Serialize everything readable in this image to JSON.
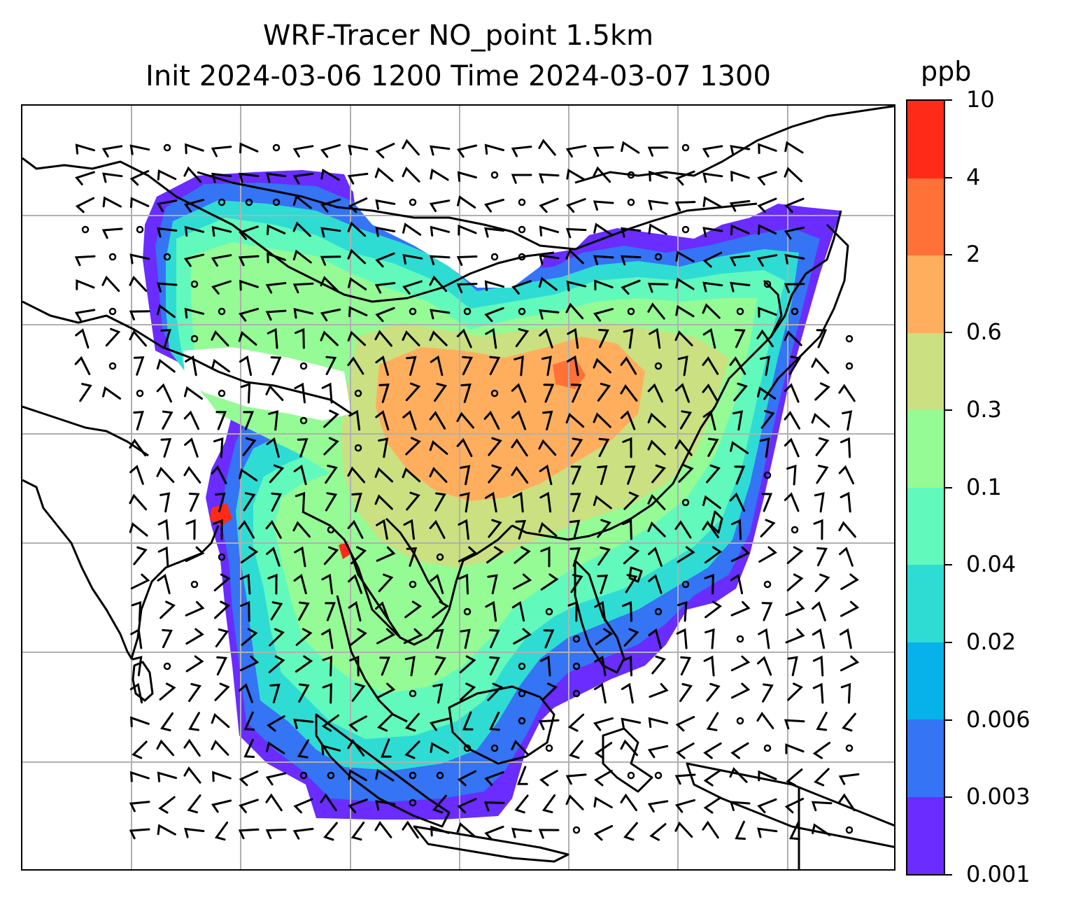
{
  "title": {
    "line1": "WRF-Tracer NO_point 1.5km",
    "line2": "Init 2024-03-06 1200 Time 2024-03-07 1300"
  },
  "colorbar": {
    "unit": "ppb",
    "levels": [
      "0.001",
      "0.003",
      "0.006",
      "0.02",
      "0.04",
      "0.1",
      "0.3",
      "0.6",
      "2",
      "4",
      "10"
    ],
    "colors": [
      "#6a2cff",
      "#3474f5",
      "#07b1ea",
      "#2fdcd4",
      "#62f9bd",
      "#95fb95",
      "#cbe081",
      "#ffae5e",
      "#ff7136",
      "#ff2b18"
    ]
  },
  "map": {
    "colormap": "rainbow",
    "gridline_color": "#b0b0b0",
    "coastline_color": "#000000",
    "wind_barbs": true
  }
}
